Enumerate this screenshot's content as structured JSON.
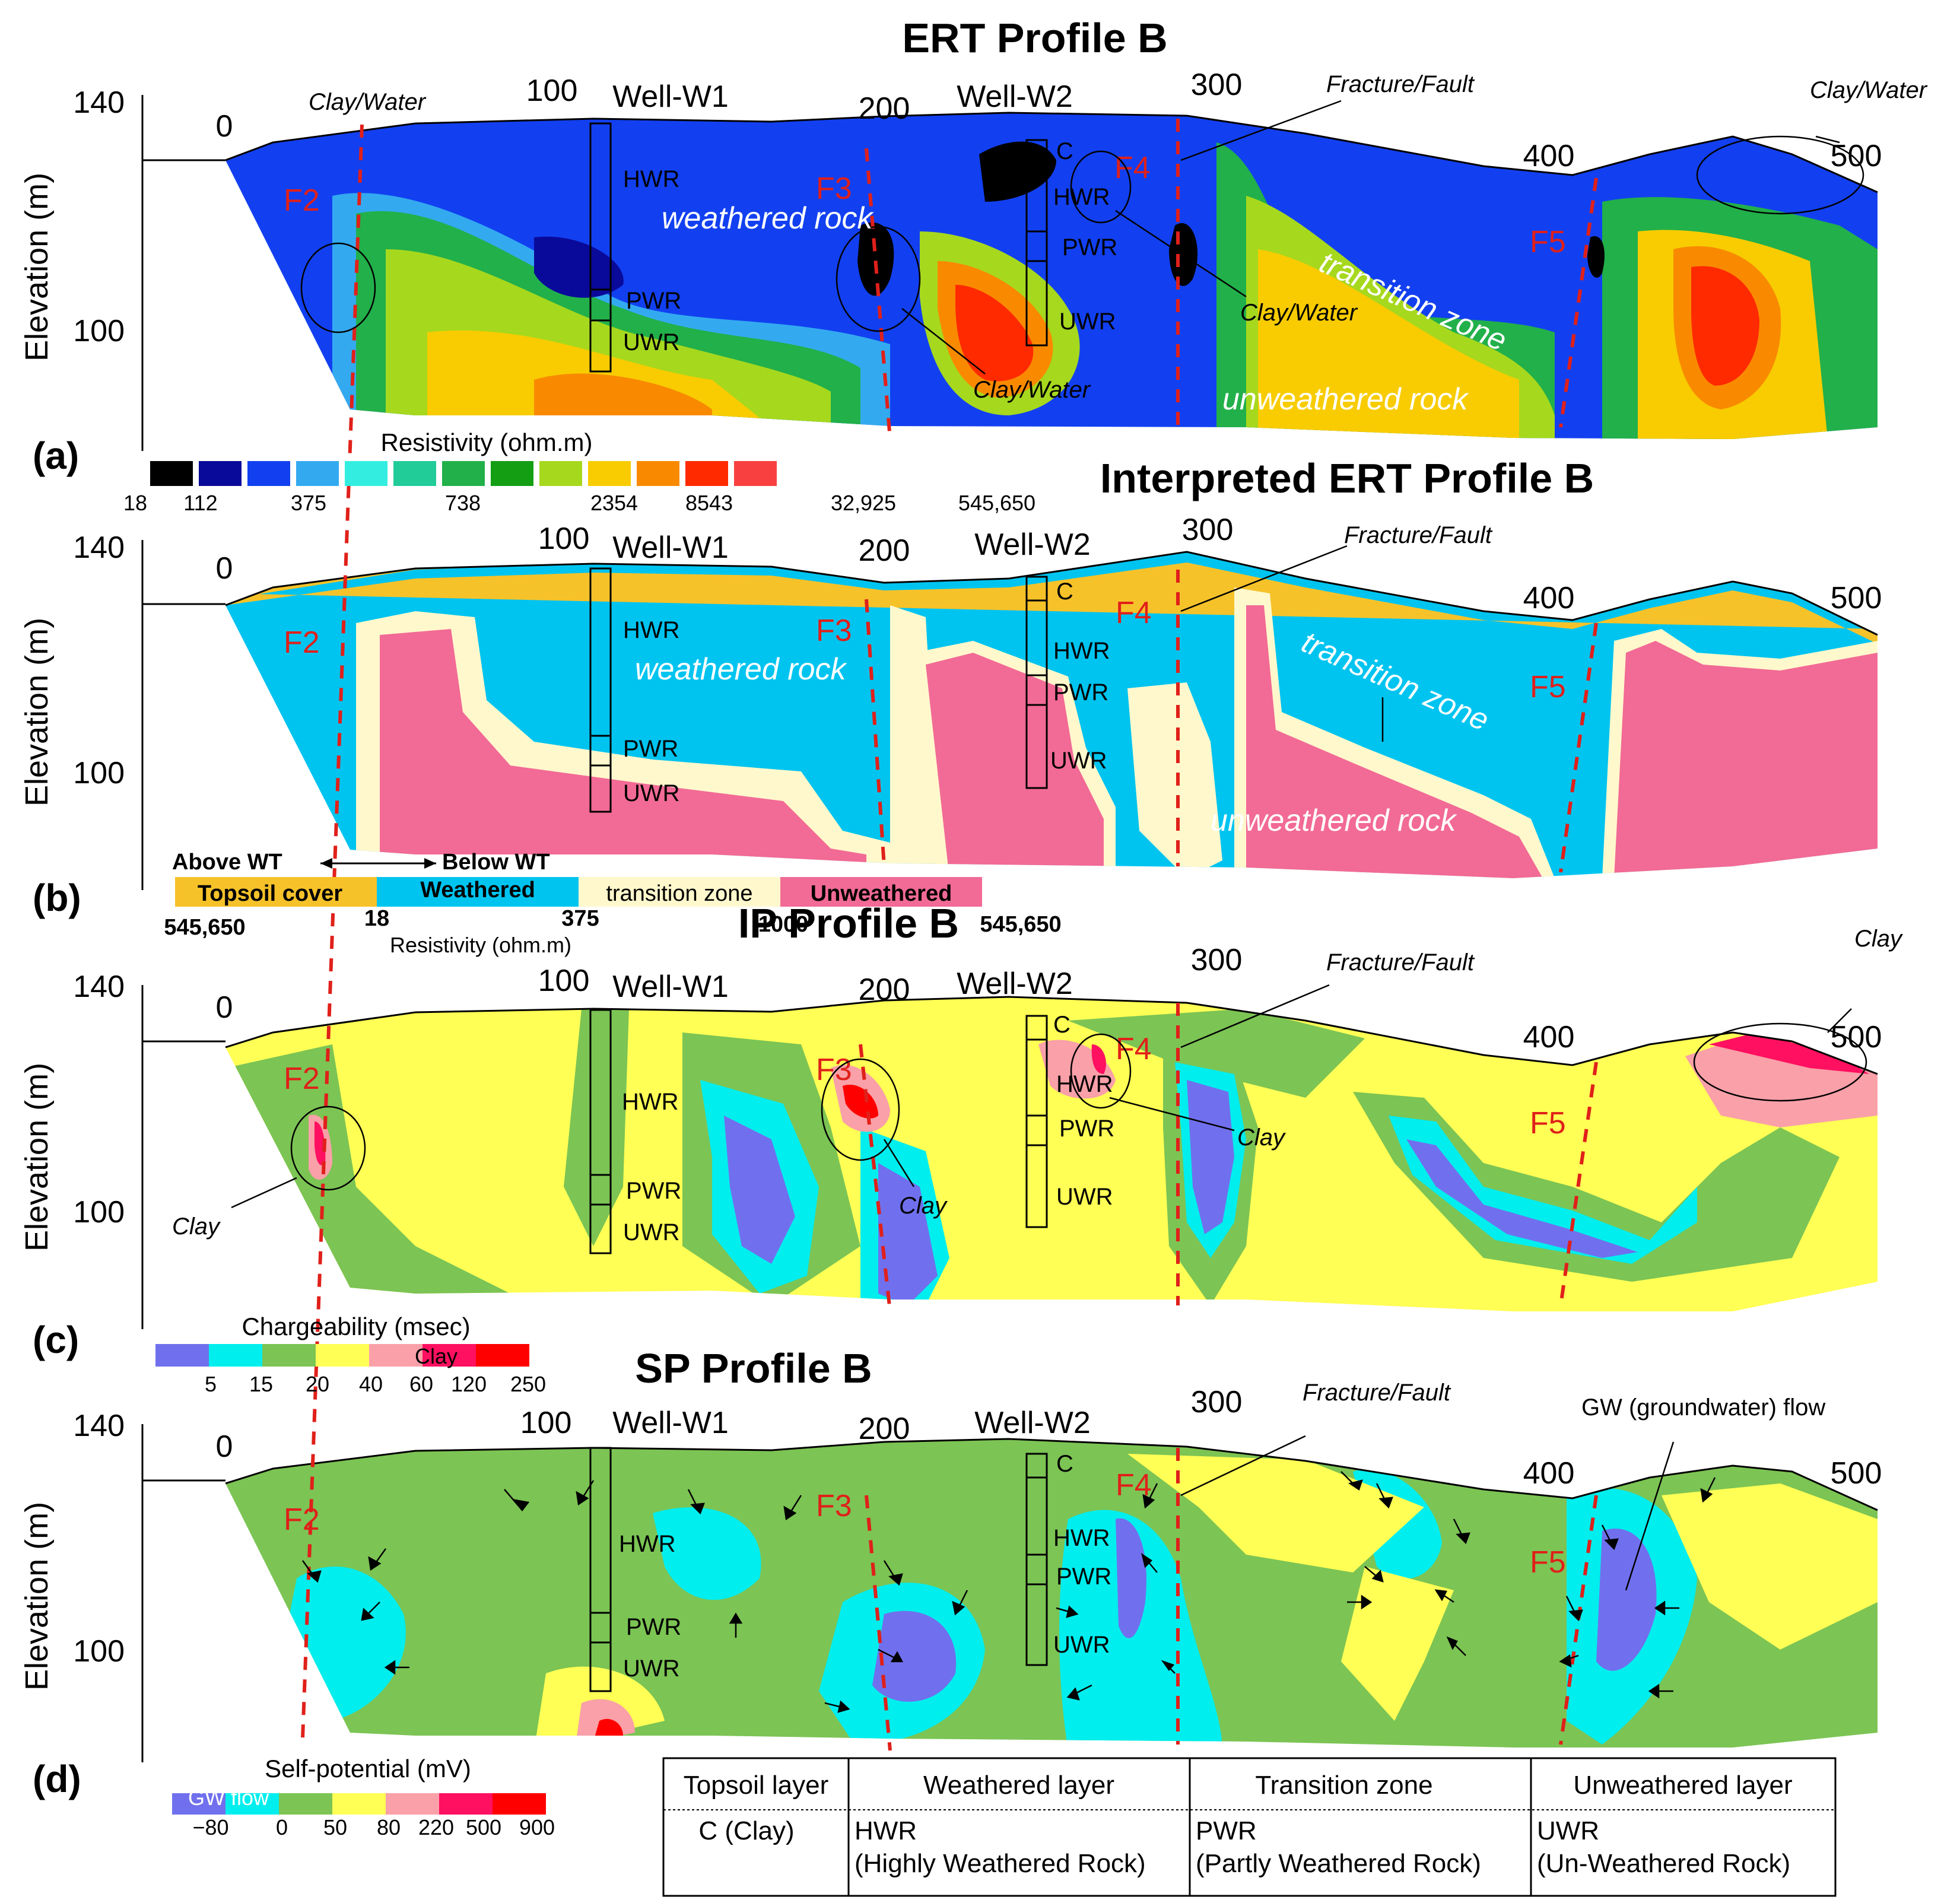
{
  "panels": [
    {
      "id": "a",
      "label": "(a)",
      "title": "ERT Profile B"
    },
    {
      "id": "b",
      "label": "(b)",
      "title": "Interpreted ERT Profile B"
    },
    {
      "id": "c",
      "label": "(c)",
      "title": "IP Profile B"
    },
    {
      "id": "d",
      "label": "(d)",
      "title": "SP Profile B"
    }
  ],
  "y_axis": {
    "label": "Elevation (m)",
    "ticks": [
      "140",
      "100"
    ]
  },
  "x_ticks": [
    "0",
    "100",
    "200",
    "300",
    "400",
    "500"
  ],
  "wells": {
    "w1": "Well-W1",
    "w2": "Well-W2"
  },
  "well_layers": {
    "c": "C",
    "hwr": "HWR",
    "pwr": "PWR",
    "uwr": "UWR"
  },
  "faults": {
    "f2": "F2",
    "f3": "F3",
    "f4": "F4",
    "f5": "F5"
  },
  "annotations": {
    "clay_water": "Clay/Water",
    "fracture_fault": "Fracture/Fault",
    "clay": "Clay",
    "gw_flow": "GW (groundwater) flow",
    "weathered_rock": "weathered rock",
    "transition_zone": "transition zone",
    "unweathered_rock": "unweathered rock"
  },
  "colorbars": {
    "resistivity": {
      "title": "Resistivity (ohm.m)",
      "colors": [
        "#000000",
        "#0a0a9a",
        "#1240f0",
        "#33aaf0",
        "#33eee0",
        "#22cc99",
        "#22b04a",
        "#149e14",
        "#a6d81e",
        "#f8cc00",
        "#f98a00",
        "#ff2a00",
        "#f84040"
      ],
      "labels": [
        "18",
        "112",
        "375",
        "738",
        "2354",
        "8543",
        "32,925",
        "545,650"
      ]
    },
    "interpreted": {
      "above": "Above WT",
      "below": "Below WT",
      "classes": [
        {
          "name": "Topsoil cover",
          "color": "#f6c22a"
        },
        {
          "name": "Weathered",
          "color": "#00c4f0"
        },
        {
          "name": "transition zone",
          "color": "#fff8cc"
        },
        {
          "name": "Unweathered",
          "color": "#f26a96"
        }
      ],
      "labels": [
        "545,650",
        "18",
        "375",
        "1000",
        "545,650"
      ],
      "title": "Resistivity (ohm.m)"
    },
    "chargeability": {
      "title": "Chargeability (msec)",
      "clay": "Clay",
      "colors": [
        "#7070ee",
        "#00eeee",
        "#7cc454",
        "#ffff55",
        "#f9a0a8",
        "#ff1060",
        "#ff0000"
      ],
      "labels": [
        "5",
        "15",
        "20",
        "40",
        "60",
        "120",
        "250"
      ]
    },
    "sp": {
      "title": "Self-potential (mV)",
      "gw": "GW flow",
      "colors": [
        "#7070ee",
        "#00eeee",
        "#7cc454",
        "#ffff55",
        "#f9a0a8",
        "#ff1060",
        "#ff0000"
      ],
      "labels": [
        "−80",
        "0",
        "50",
        "80",
        "220",
        "500",
        "900"
      ]
    }
  },
  "legend_table": {
    "headers": [
      "Topsoil layer",
      "Weathered  layer",
      "Transition zone",
      "Unweathered  layer"
    ],
    "row1": [
      "C (Clay)",
      "HWR",
      "PWR",
      "UWR"
    ],
    "row2": [
      "",
      "(Highly Weathered Rock)",
      "(Partly Weathered Rock)",
      "(Un-Weathered Rock)"
    ]
  }
}
